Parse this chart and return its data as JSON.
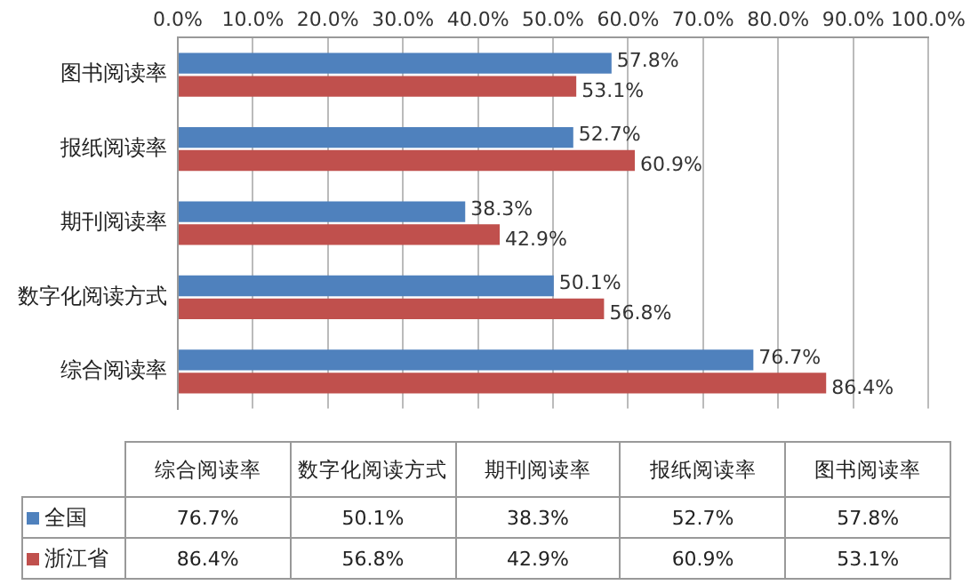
{
  "chart_data": {
    "type": "bar",
    "orientation": "horizontal",
    "categories": [
      "图书阅读率",
      "报纸阅读率",
      "期刊阅读率",
      "数字化阅读方式",
      "综合阅读率"
    ],
    "series": [
      {
        "name": "全国",
        "color": "#4f81bd",
        "values": [
          57.8,
          52.7,
          38.3,
          50.1,
          76.7
        ],
        "value_labels": [
          "57.8%",
          "52.7%",
          "38.3%",
          "50.1%",
          "76.7%"
        ]
      },
      {
        "name": "浙江省",
        "color": "#c0504d",
        "values": [
          53.1,
          60.9,
          42.9,
          56.8,
          86.4
        ],
        "value_labels": [
          "53.1%",
          "60.9%",
          "42.9%",
          "56.8%",
          "86.4%"
        ]
      }
    ],
    "xlim": [
      0,
      100
    ],
    "xticks": [
      {
        "value": 0,
        "label": "0.0%"
      },
      {
        "value": 10,
        "label": "10.0%"
      },
      {
        "value": 20,
        "label": "20.0%"
      },
      {
        "value": 30,
        "label": "30.0%"
      },
      {
        "value": 40,
        "label": "40.0%"
      },
      {
        "value": 50,
        "label": "50.0%"
      },
      {
        "value": 60,
        "label": "60.0%"
      },
      {
        "value": 70,
        "label": "70.0%"
      },
      {
        "value": 80,
        "label": "80.0%"
      },
      {
        "value": 90,
        "label": "90.0%"
      },
      {
        "value": 100,
        "label": "100.0%"
      }
    ],
    "grid": "x",
    "legend": "bottom"
  }
}
